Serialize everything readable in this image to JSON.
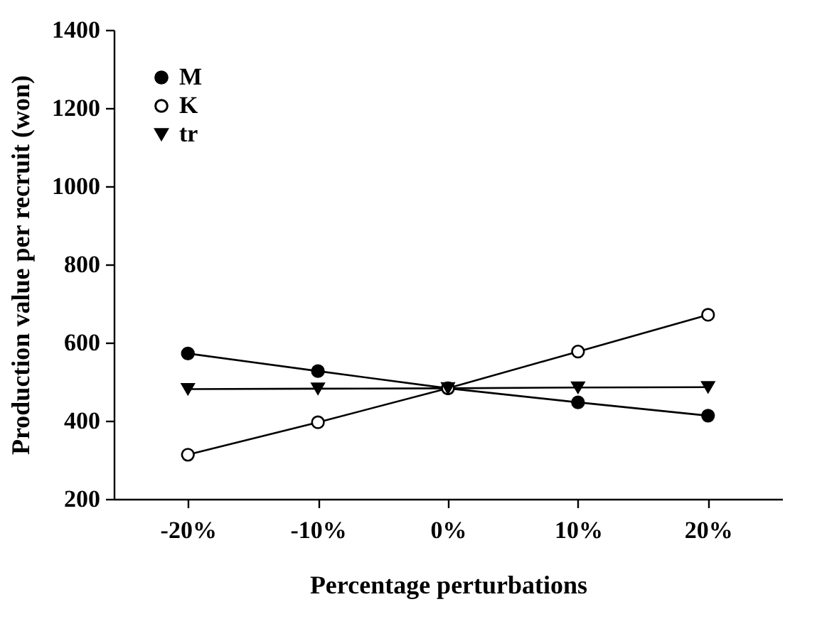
{
  "chart_data": {
    "type": "line",
    "xlabel": "Percentage perturbations",
    "ylabel": "Production value per recruit (won)",
    "categories": [
      "-20%",
      "-10%",
      "0%",
      "10%",
      "20%"
    ],
    "series": [
      {
        "name": "M",
        "color": "#000000",
        "marker": "circle",
        "values": [
          572,
          527,
          483,
          447,
          413
        ]
      },
      {
        "name": "K",
        "color": "#000000",
        "marker": "circle",
        "values": [
          313,
          396,
          483,
          577,
          671
        ]
      },
      {
        "name": "tr",
        "color": "#000000",
        "marker": "triangle",
        "values": [
          481,
          482,
          483,
          485,
          486
        ]
      }
    ],
    "ylim": [
      200,
      1400
    ],
    "yticks": [
      200,
      400,
      600,
      800,
      1000,
      1200,
      1400
    ],
    "grid": false,
    "legend": "top left",
    "line_style": "solid"
  }
}
